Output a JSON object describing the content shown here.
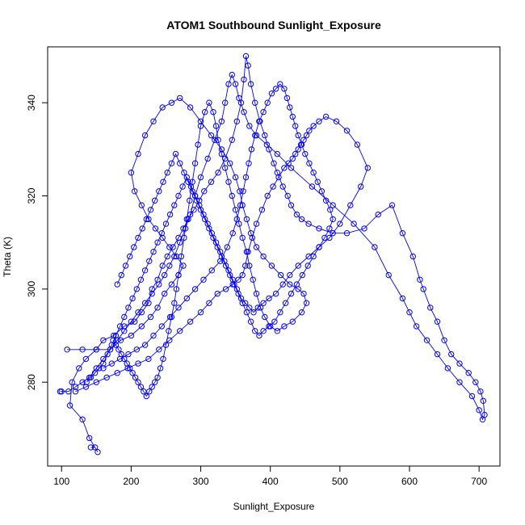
{
  "chart_data": {
    "type": "line",
    "title": "ATOM1 Southbound Sunlight_Exposure",
    "xlabel": "Sunlight_Exposure",
    "ylabel": "Theta (K)",
    "xlim": [
      80,
      730
    ],
    "ylim": [
      262,
      352
    ],
    "x_ticks": [
      100,
      200,
      300,
      400,
      500,
      600,
      700
    ],
    "y_ticks": [
      280,
      300,
      320,
      340
    ],
    "grid": false,
    "legend": "none",
    "colors": {
      "series": "#0000ff",
      "axis": "#000000"
    },
    "series": [
      {
        "style": "lines+open-circles",
        "x": [
          142,
          148,
          152,
          140,
          130,
          112,
          115,
          125,
          135,
          150,
          160,
          175,
          190,
          205,
          215,
          225,
          230,
          238,
          245,
          252,
          260,
          268,
          275,
          282,
          290,
          298,
          305,
          315,
          325,
          335,
          345,
          352,
          358,
          362,
          365,
          368,
          372,
          378,
          385,
          392,
          398,
          405,
          410,
          418,
          425,
          430,
          438,
          445,
          455,
          470,
          490,
          510,
          535,
          555,
          575,
          590,
          605,
          615,
          620,
          630,
          640,
          650,
          660,
          672,
          685,
          695,
          702,
          706,
          708,
          705,
          700,
          690,
          672,
          655,
          640,
          625,
          610,
          600,
          590,
          570,
          550,
          520,
          490,
          460,
          430,
          410,
          395,
          380,
          370,
          362,
          355,
          350,
          345,
          340,
          335,
          330,
          320,
          310,
          300,
          292,
          285,
          278,
          270,
          262,
          255,
          248,
          240,
          230,
          220,
          210,
          200,
          190,
          180,
          170,
          160,
          150,
          140,
          130,
          120,
          110,
          100,
          98
        ],
        "y": [
          266,
          266,
          265,
          268,
          272,
          275,
          280,
          283,
          285,
          287,
          289,
          290,
          292,
          293,
          295,
          297,
          300,
          302,
          305,
          307,
          309,
          311,
          313,
          315,
          317,
          319,
          321,
          323,
          325,
          328,
          332,
          336,
          340,
          345,
          350,
          348,
          344,
          340,
          336,
          333,
          330,
          327,
          325,
          322,
          320,
          318,
          316,
          315,
          314,
          313,
          312,
          312,
          313,
          316,
          318,
          312,
          307,
          302,
          300,
          296,
          293,
          289,
          286,
          284,
          282,
          280,
          278,
          276,
          273,
          272,
          274,
          277,
          280,
          283,
          286,
          289,
          292,
          295,
          298,
          303,
          309,
          314,
          318,
          322,
          326,
          329,
          331,
          333,
          335,
          338,
          341,
          344,
          346,
          344,
          340,
          336,
          332,
          328,
          324,
          320,
          316,
          313,
          310,
          307,
          305,
          303,
          301,
          299,
          297,
          295,
          293,
          291,
          289,
          287,
          285,
          283,
          281,
          280,
          279,
          278,
          278,
          278
        ]
      },
      {
        "style": "lines+open-circles",
        "x": [
          108,
          130,
          150,
          170,
          185,
          200,
          215,
          228,
          238,
          248,
          258,
          268,
          275,
          265,
          255,
          245,
          235,
          225,
          215,
          205,
          200,
          210,
          220,
          232,
          245,
          258,
          270,
          285,
          300,
          315,
          330,
          342,
          350,
          356,
          360,
          366,
          372,
          380,
          390,
          402,
          415,
          428,
          440,
          448,
          452,
          445,
          432,
          420,
          410,
          400,
          392,
          386,
          380,
          375,
          370,
          366,
          360,
          355,
          350,
          345,
          340,
          335,
          330,
          325,
          322,
          318,
          312,
          306,
          300,
          296,
          292,
          288,
          284,
          280,
          276,
          272,
          268,
          265,
          262,
          258,
          254,
          250,
          246,
          242,
          238,
          234,
          230,
          226,
          222,
          218,
          214,
          210,
          206,
          202,
          198,
          194,
          190,
          186,
          182,
          178,
          174
        ],
        "y": [
          287,
          287,
          287,
          287,
          289,
          290,
          292,
          294,
          296,
          299,
          301,
          303,
          305,
          307,
          309,
          311,
          313,
          315,
          318,
          321,
          325,
          329,
          333,
          336,
          339,
          340,
          341,
          339,
          336,
          333,
          330,
          327,
          324,
          321,
          318,
          315,
          312,
          309,
          307,
          305,
          303,
          301,
          300,
          299,
          297,
          295,
          293,
          292,
          291,
          292,
          294,
          296,
          299,
          302,
          305,
          308,
          311,
          314,
          317,
          320,
          323,
          326,
          329,
          332,
          335,
          338,
          340,
          338,
          335,
          331,
          327,
          323,
          319,
          315,
          311,
          307,
          303,
          300,
          297,
          294,
          291,
          288,
          285,
          283,
          281,
          280,
          279,
          278,
          277,
          278,
          279,
          280,
          281,
          282,
          283,
          284,
          285,
          286,
          287,
          288,
          289
        ]
      },
      {
        "style": "lines+open-circles",
        "x": [
          120,
          135,
          150,
          165,
          180,
          195,
          210,
          225,
          240,
          255,
          270,
          285,
          300,
          312,
          324,
          336,
          346,
          354,
          360,
          364,
          368,
          374,
          380,
          388,
          396,
          404,
          412,
          420,
          426,
          432,
          436,
          440,
          444,
          448,
          452,
          456,
          462,
          470,
          480,
          495,
          510,
          525,
          540,
          530,
          515,
          500,
          485,
          470,
          455,
          440,
          428,
          418,
          408,
          398,
          390,
          382,
          376,
          370,
          364,
          358,
          352,
          346,
          340,
          334,
          328,
          322,
          316,
          310,
          304,
          298,
          292,
          286,
          280,
          274,
          268,
          262,
          256,
          250,
          244,
          238,
          232,
          226,
          220,
          214,
          208,
          202,
          196,
          190,
          184,
          178,
          172,
          166,
          160,
          154,
          148,
          142,
          136
        ],
        "y": [
          278,
          279,
          280,
          281,
          282,
          283,
          284,
          285,
          287,
          289,
          291,
          293,
          295,
          297,
          299,
          300,
          301,
          302,
          303,
          305,
          308,
          311,
          314,
          317,
          320,
          322,
          324,
          326,
          327,
          328,
          329,
          330,
          331,
          332,
          333,
          334,
          335,
          336,
          337,
          336,
          334,
          331,
          326,
          322,
          318,
          314,
          311,
          309,
          307,
          305,
          303,
          301,
          299,
          298,
          297,
          296,
          295,
          296,
          297,
          298,
          300,
          302,
          304,
          306,
          308,
          310,
          312,
          314,
          316,
          318,
          320,
          322,
          324,
          322,
          320,
          318,
          316,
          314,
          312,
          310,
          308,
          306,
          304,
          302,
          300,
          298,
          296,
          294,
          292,
          290,
          288,
          286,
          284,
          283,
          282,
          281,
          280
        ]
      },
      {
        "style": "lines+open-circles",
        "x": [
          160,
          172,
          184,
          196,
          208,
          220,
          232,
          244,
          256,
          268,
          280,
          292,
          304,
          316,
          328,
          338,
          346,
          352,
          357,
          361,
          365,
          369,
          373,
          378,
          384,
          390,
          396,
          402,
          408,
          414,
          420,
          424,
          428,
          432,
          436,
          440,
          445,
          450,
          456,
          462,
          468,
          474,
          480,
          486,
          490,
          485,
          478,
          470,
          462,
          454,
          446,
          438,
          430,
          422,
          414,
          406,
          398,
          390,
          384,
          378,
          372,
          366,
          360,
          354,
          348,
          342,
          336,
          330,
          324,
          318,
          312,
          306,
          300,
          294,
          288,
          282,
          276,
          270,
          264,
          258,
          252,
          246,
          240,
          234,
          228,
          222,
          216,
          210,
          204,
          198,
          192,
          186,
          180
        ],
        "y": [
          283,
          284,
          285,
          286,
          287,
          288,
          290,
          292,
          294,
          296,
          298,
          300,
          302,
          304,
          306,
          309,
          312,
          315,
          318,
          321,
          324,
          327,
          330,
          333,
          336,
          338,
          340,
          342,
          343,
          344,
          343,
          341,
          339,
          337,
          335,
          333,
          331,
          329,
          327,
          325,
          323,
          321,
          319,
          317,
          315,
          313,
          311,
          309,
          307,
          305,
          303,
          301,
          299,
          297,
          295,
          293,
          292,
          291,
          290,
          291,
          293,
          295,
          297,
          299,
          301,
          303,
          305,
          307,
          309,
          311,
          313,
          315,
          317,
          319,
          321,
          323,
          325,
          327,
          329,
          327,
          325,
          323,
          321,
          319,
          317,
          315,
          313,
          311,
          309,
          307,
          305,
          303,
          301
        ]
      }
    ]
  }
}
